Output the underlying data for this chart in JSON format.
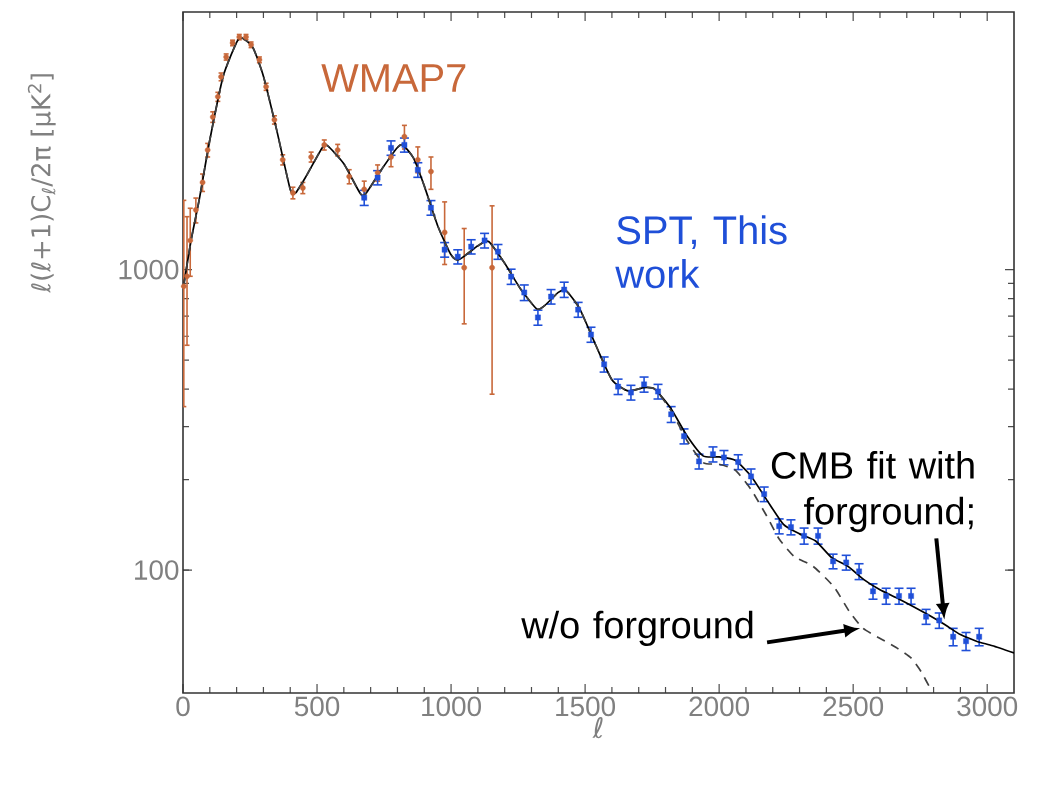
{
  "chart_data": {
    "type": "scatter",
    "xlabel": "ℓ",
    "ylabel": "ℓ(ℓ+1)C$_{ℓ}$/2π  [μK$^{2}$]",
    "log": "y",
    "xlim": [
      0,
      3100
    ],
    "ylim": [
      39,
      7200
    ],
    "xticks": [
      0,
      500,
      1000,
      1500,
      2000,
      2500,
      3000
    ],
    "yticks": [
      100,
      1000
    ],
    "series": [
      {
        "name": "WMAP7",
        "color": "#c8683a",
        "marker": "circle",
        "x": [
          3,
          15,
          27,
          48,
          73,
          92,
          111,
          130,
          142,
          161,
          185,
          210,
          235,
          254,
          285,
          310,
          341,
          372,
          410,
          447,
          478,
          527,
          577,
          620,
          676,
          726,
          776,
          826,
          876,
          925,
          976,
          1049,
          1153
        ],
        "values": [
          880,
          950,
          1250,
          1580,
          1950,
          2500,
          3220,
          3760,
          4380,
          5100,
          5680,
          5940,
          5940,
          5600,
          4990,
          4060,
          3150,
          2320,
          1800,
          1870,
          2370,
          2600,
          2500,
          2040,
          1850,
          2100,
          2370,
          2770,
          2320,
          2120,
          1330,
          1015,
          1015
        ],
        "errors": [
          [
            350,
            1700
          ],
          [
            560,
            1500
          ],
          [
            950,
            1600
          ],
          150,
          130,
          130,
          130,
          130,
          130,
          120,
          120,
          120,
          120,
          120,
          110,
          110,
          100,
          90,
          80,
          80,
          90,
          100,
          110,
          110,
          120,
          130,
          170,
          250,
          [
            2100,
            2560
          ],
          [
            1850,
            2370
          ],
          [
            1040,
            1680
          ],
          [
            660,
            1370
          ],
          [
            385,
            1630
          ]
        ]
      },
      {
        "name": "SPT, This work",
        "color": "#1f4fd8",
        "marker": "square",
        "x": [
          676,
          726,
          776,
          826,
          876,
          925,
          976,
          1025,
          1075,
          1125,
          1175,
          1224,
          1273,
          1324,
          1373,
          1422,
          1474,
          1522,
          1571,
          1623,
          1671,
          1720,
          1772,
          1821,
          1869,
          1925,
          1977,
          2018,
          2071,
          2119,
          2168,
          2224,
          2268,
          2317,
          2369,
          2425,
          2474,
          2522,
          2574,
          2623,
          2671,
          2716,
          2772,
          2821,
          2873,
          2921,
          2970
        ],
        "values": [
          1735,
          2024,
          2541,
          2600,
          2148,
          1607,
          1165,
          1104,
          1192,
          1250,
          1147,
          948,
          839,
          693,
          813,
          858,
          736,
          608,
          484,
          408,
          390,
          415,
          393,
          330,
          279,
          230,
          243,
          237,
          229,
          205,
          179,
          140,
          139,
          130,
          130,
          107,
          106,
          99,
          85,
          82,
          82,
          82,
          70,
          68,
          60,
          58,
          60
        ],
        "errors": [
          100,
          110,
          140,
          140,
          120,
          90,
          65,
          60,
          65,
          70,
          65,
          55,
          50,
          40,
          45,
          50,
          42,
          35,
          28,
          24,
          22,
          24,
          22,
          20,
          16,
          13,
          14,
          13,
          13,
          12,
          10,
          8,
          8,
          8,
          8,
          6,
          6,
          6,
          5,
          5,
          5,
          5,
          4,
          4,
          4,
          4,
          4
        ]
      },
      {
        "type": "line",
        "color": "#000000",
        "marker": "none",
        "line_style": "solid",
        "x": [
          2,
          30,
          60,
          100,
          150,
          200,
          220,
          260,
          300,
          350,
          400,
          420,
          460,
          520,
          540,
          600,
          660,
          680,
          740,
          800,
          820,
          860,
          900,
          950,
          1000,
          1030,
          1100,
          1140,
          1200,
          1260,
          1320,
          1350,
          1400,
          1430,
          1480,
          1540,
          1600,
          1660,
          1720,
          1760,
          1820,
          1880,
          1940,
          2000,
          2060,
          2120,
          2180,
          2240,
          2300,
          2360,
          2420,
          2480,
          2540,
          2600,
          2660,
          2720,
          2780,
          2840,
          2900,
          2960,
          3020,
          3100
        ],
        "values": [
          880,
          1250,
          1700,
          2700,
          4400,
          5700,
          5900,
          5500,
          4400,
          2900,
          1850,
          1800,
          2050,
          2550,
          2580,
          2250,
          1800,
          1780,
          2150,
          2550,
          2600,
          2350,
          1900,
          1400,
          1120,
          1080,
          1200,
          1240,
          1050,
          860,
          740,
          760,
          840,
          850,
          740,
          560,
          430,
          395,
          405,
          400,
          345,
          280,
          240,
          238,
          232,
          205,
          170,
          142,
          132,
          125,
          110,
          103,
          93,
          86,
          81,
          76,
          71,
          66,
          61,
          58,
          56,
          53
        ]
      },
      {
        "type": "line",
        "color": "#404040",
        "marker": "none",
        "line_style": "dashed",
        "x": [
          2,
          30,
          60,
          100,
          150,
          200,
          220,
          260,
          300,
          350,
          400,
          420,
          460,
          520,
          540,
          600,
          660,
          680,
          740,
          800,
          820,
          860,
          900,
          950,
          1000,
          1030,
          1100,
          1140,
          1200,
          1260,
          1320,
          1350,
          1400,
          1430,
          1480,
          1540,
          1600,
          1660,
          1720,
          1760,
          1820,
          1880,
          1940,
          2000,
          2060,
          2120,
          2180,
          2224,
          2280,
          2350,
          2428,
          2485,
          2537,
          2604,
          2664,
          2716,
          2753,
          2790
        ],
        "values": [
          880,
          1250,
          1700,
          2700,
          4400,
          5700,
          5900,
          5500,
          4400,
          2900,
          1850,
          1800,
          2050,
          2550,
          2580,
          2250,
          1800,
          1780,
          2150,
          2550,
          2600,
          2350,
          1900,
          1400,
          1120,
          1080,
          1200,
          1240,
          1050,
          860,
          740,
          760,
          840,
          850,
          740,
          560,
          430,
          395,
          405,
          400,
          340,
          270,
          228,
          225,
          215,
          185,
          150,
          127,
          111,
          103,
          88,
          73,
          64,
          59,
          55,
          51,
          46,
          40
        ]
      }
    ],
    "annotations": [
      {
        "text": "CMB fit with forground;",
        "x": 2840,
        "y": 66
      },
      {
        "text": "w/o forground",
        "x": 2537,
        "y": 64
      }
    ]
  }
}
